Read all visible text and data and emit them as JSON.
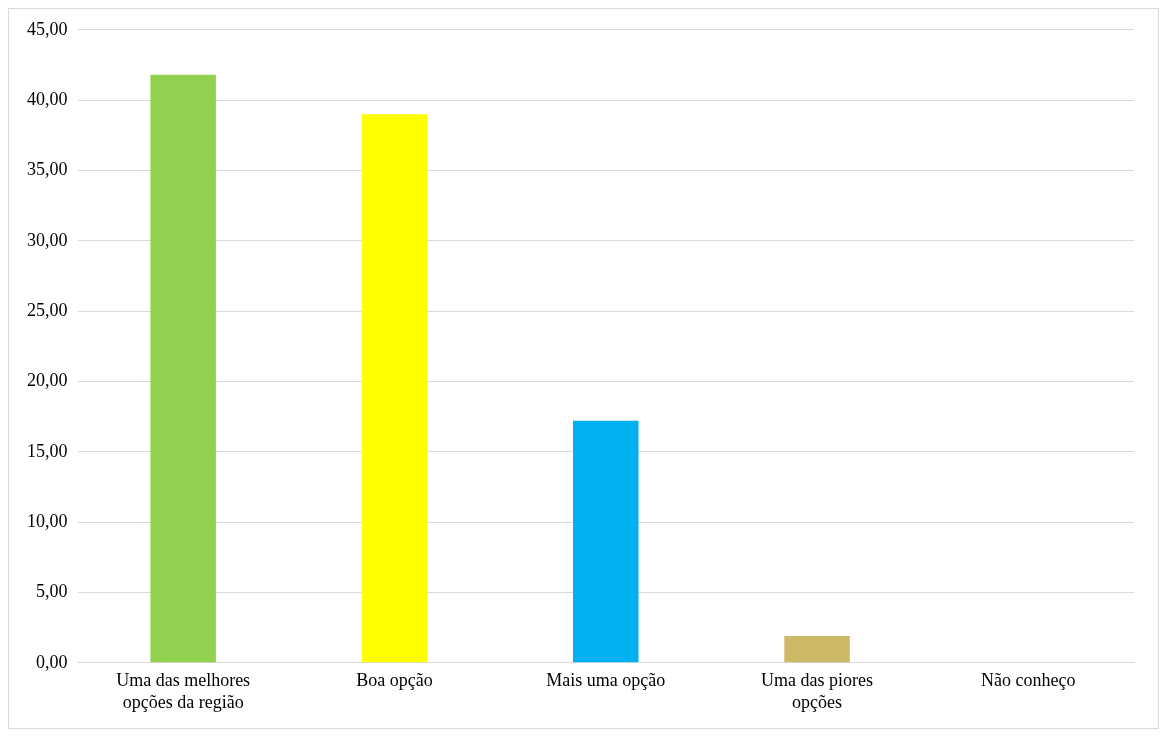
{
  "chart_data": {
    "type": "bar",
    "categories": [
      "Uma das melhores opções da região",
      "Boa opção",
      "Mais uma opção",
      "Uma das piores opções",
      "Não conheço"
    ],
    "values": [
      41.8,
      39.0,
      17.2,
      1.9,
      0
    ],
    "colors": [
      "#92d050",
      "#ffff00",
      "#00b0f0",
      "#cdb966",
      "#a5a5a5"
    ],
    "ylim": [
      0,
      45
    ],
    "yticks": [
      {
        "value": 0,
        "label": "0,00"
      },
      {
        "value": 5,
        "label": "5,00"
      },
      {
        "value": 10,
        "label": "10,00"
      },
      {
        "value": 15,
        "label": "15,00"
      },
      {
        "value": 20,
        "label": "20,00"
      },
      {
        "value": 25,
        "label": "25,00"
      },
      {
        "value": 30,
        "label": "30,00"
      },
      {
        "value": 35,
        "label": "35,00"
      },
      {
        "value": 40,
        "label": "40,00"
      },
      {
        "value": 45,
        "label": "45,00"
      }
    ],
    "grid": "y"
  }
}
